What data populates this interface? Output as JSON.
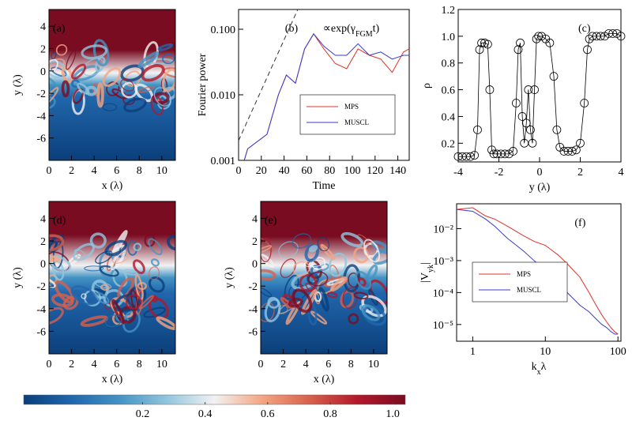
{
  "chart_data": [
    {
      "type": "heatmap",
      "label": "(a)",
      "xlabel": "x (λ)",
      "ylabel": "y (λ)",
      "xlim": [
        0,
        11.2
      ],
      "ylim": [
        -8,
        5.5
      ],
      "xticks": [
        0,
        2,
        4,
        6,
        8,
        10
      ],
      "yticks": [
        -6,
        -4,
        -2,
        0,
        2,
        4
      ],
      "mix": 0.25
    },
    {
      "type": "line",
      "label": "(b)",
      "xlabel": "Time",
      "ylabel": "Fourier power",
      "yscale": "log",
      "annotation": {
        "main": "∝exp(γ",
        "sub": "FGM",
        "end": "t)"
      },
      "xlim": [
        0,
        150
      ],
      "ylim": [
        0.001,
        0.2
      ],
      "xticks": [
        0,
        20,
        40,
        60,
        80,
        100,
        120,
        140
      ],
      "yticks": [
        0.001,
        {
          "value": 0.01,
          "label": "0.010"
        },
        {
          "value": 0.1,
          "label": "0.100"
        }
      ],
      "reference_line": {
        "x": [
          0,
          52
        ],
        "y": [
          0.002,
          0.2
        ]
      },
      "legend": "lower right",
      "x": [
        5,
        8,
        25,
        35,
        42,
        50,
        58,
        66,
        75,
        85,
        95,
        105,
        115,
        125,
        135,
        145,
        150
      ],
      "series": [
        {
          "name": "MPS",
          "color": "#e0302a",
          "values": [
            0.001,
            0.0015,
            0.0025,
            0.01,
            0.02,
            0.015,
            0.05,
            0.085,
            0.05,
            0.03,
            0.025,
            0.05,
            0.04,
            0.035,
            0.022,
            0.045,
            0.05
          ]
        },
        {
          "name": "MUSCL",
          "color": "#3a3ad0",
          "values": [
            0.001,
            0.0015,
            0.0025,
            0.01,
            0.02,
            0.015,
            0.05,
            0.085,
            0.055,
            0.04,
            0.04,
            0.06,
            0.04,
            0.045,
            0.035,
            0.04,
            0.04
          ]
        }
      ]
    },
    {
      "type": "scatter",
      "label": "(c)",
      "xlabel": "y (λ)",
      "ylabel": "ρ",
      "color": "#000000",
      "xlim": [
        -4,
        4
      ],
      "ylim": [
        0.06,
        1.2
      ],
      "xticks": [
        -4,
        -2,
        0,
        2,
        4
      ],
      "yticks": [
        0.2,
        0.4,
        0.6,
        0.8,
        {
          "value": 1,
          "label": "1.0"
        },
        1.2
      ],
      "x": [
        -4,
        -3.8,
        -3.6,
        -3.4,
        -3.2,
        -3.05,
        -2.95,
        -2.85,
        -2.7,
        -2.55,
        -2.45,
        -2.35,
        -2.25,
        -2.1,
        -1.9,
        -1.7,
        -1.5,
        -1.3,
        -1.15,
        -1.05,
        -0.95,
        -0.85,
        -0.75,
        -0.65,
        -0.55,
        -0.45,
        -0.35,
        -0.25,
        -0.15,
        -0.05,
        0.1,
        0.3,
        0.5,
        0.7,
        0.85,
        1.0,
        1.2,
        1.4,
        1.6,
        1.8,
        2.0,
        2.2,
        2.35,
        2.45,
        2.6,
        2.8,
        3.0,
        3.2,
        3.4,
        3.6,
        3.8,
        4.0
      ],
      "values": [
        0.1,
        0.1,
        0.1,
        0.1,
        0.11,
        0.3,
        0.9,
        0.95,
        0.95,
        0.94,
        0.6,
        0.15,
        0.12,
        0.12,
        0.12,
        0.12,
        0.12,
        0.14,
        0.5,
        0.9,
        0.95,
        0.4,
        0.2,
        0.35,
        0.6,
        0.3,
        0.2,
        0.6,
        0.98,
        1.0,
        1.0,
        0.98,
        0.95,
        0.7,
        0.3,
        0.17,
        0.14,
        0.14,
        0.14,
        0.15,
        0.2,
        0.5,
        0.9,
        0.98,
        1.0,
        1.0,
        1.0,
        1.0,
        1.02,
        1.02,
        1.02,
        1.0
      ]
    },
    {
      "type": "heatmap",
      "label": "(d)",
      "xlabel": "x (λ)",
      "ylabel": "y (λ)",
      "xlim": [
        0,
        11.2
      ],
      "ylim": [
        -8,
        5.5
      ],
      "xticks": [
        0,
        2,
        4,
        6,
        8,
        10
      ],
      "yticks": [
        -6,
        -4,
        -2,
        0,
        2,
        4
      ],
      "mix": 0.5
    },
    {
      "type": "heatmap",
      "label": "(e)",
      "xlabel": "x (λ)",
      "ylabel": "y (λ)",
      "xlim": [
        0,
        11.2
      ],
      "ylim": [
        -8,
        5.5
      ],
      "xticks": [
        0,
        2,
        4,
        6,
        8,
        10
      ],
      "yticks": [
        -6,
        -4,
        -2,
        0,
        2,
        4
      ],
      "mix": 0.45
    },
    {
      "type": "line",
      "label": "(f)",
      "xscale": "log",
      "yscale": "log",
      "xlabel": {
        "main": "k",
        "sub": "x",
        "end": "λ"
      },
      "ylabel": {
        "main": "|V",
        "sub": "yk",
        "end": "|"
      },
      "xlim": [
        0.6,
        110
      ],
      "ylim": [
        3e-06,
        0.06
      ],
      "xticks": [
        1,
        10,
        100
      ],
      "yticks": [
        {
          "value": 1e-05,
          "label": "10⁻⁵"
        },
        {
          "value": 0.0001,
          "label": "10⁻⁴"
        },
        {
          "value": 0.001,
          "label": "10⁻³"
        },
        {
          "value": 0.01,
          "label": "10⁻²"
        }
      ],
      "legend": "center left",
      "x": [
        0.6,
        1,
        1.5,
        2,
        3,
        5,
        7,
        10,
        15,
        20,
        30,
        40,
        50,
        60,
        70,
        80,
        90,
        100
      ],
      "series": [
        {
          "name": "MPS",
          "color": "#e0302a",
          "values": [
            0.04,
            0.045,
            0.025,
            0.02,
            0.012,
            0.006,
            0.004,
            0.003,
            0.0015,
            0.0008,
            0.0003,
            0.0001,
            4e-05,
            2e-05,
            1.2e-05,
            8e-06,
            6e-06,
            5e-06
          ]
        },
        {
          "name": "MUSCL",
          "color": "#3a3ad0",
          "values": [
            0.04,
            0.035,
            0.02,
            0.012,
            0.005,
            0.002,
            0.001,
            0.0005,
            0.0002,
            0.0001,
            4e-05,
            2.5e-05,
            1.5e-05,
            1e-05,
            8e-06,
            6e-06,
            5e-06,
            5e-06
          ]
        }
      ]
    },
    {
      "type": "colorbar",
      "xlim": [
        -0.18,
        1.04
      ],
      "xticks": [
        0.2,
        0.4,
        0.6,
        0.8,
        {
          "value": 1,
          "label": "1.0"
        }
      ],
      "colormap": [
        "#0b3f7a",
        "#2166ac",
        "#4393c3",
        "#92c5de",
        "#f2f2f2",
        "#f4a582",
        "#d6604d",
        "#b2182b",
        "#7a0c22"
      ]
    }
  ]
}
